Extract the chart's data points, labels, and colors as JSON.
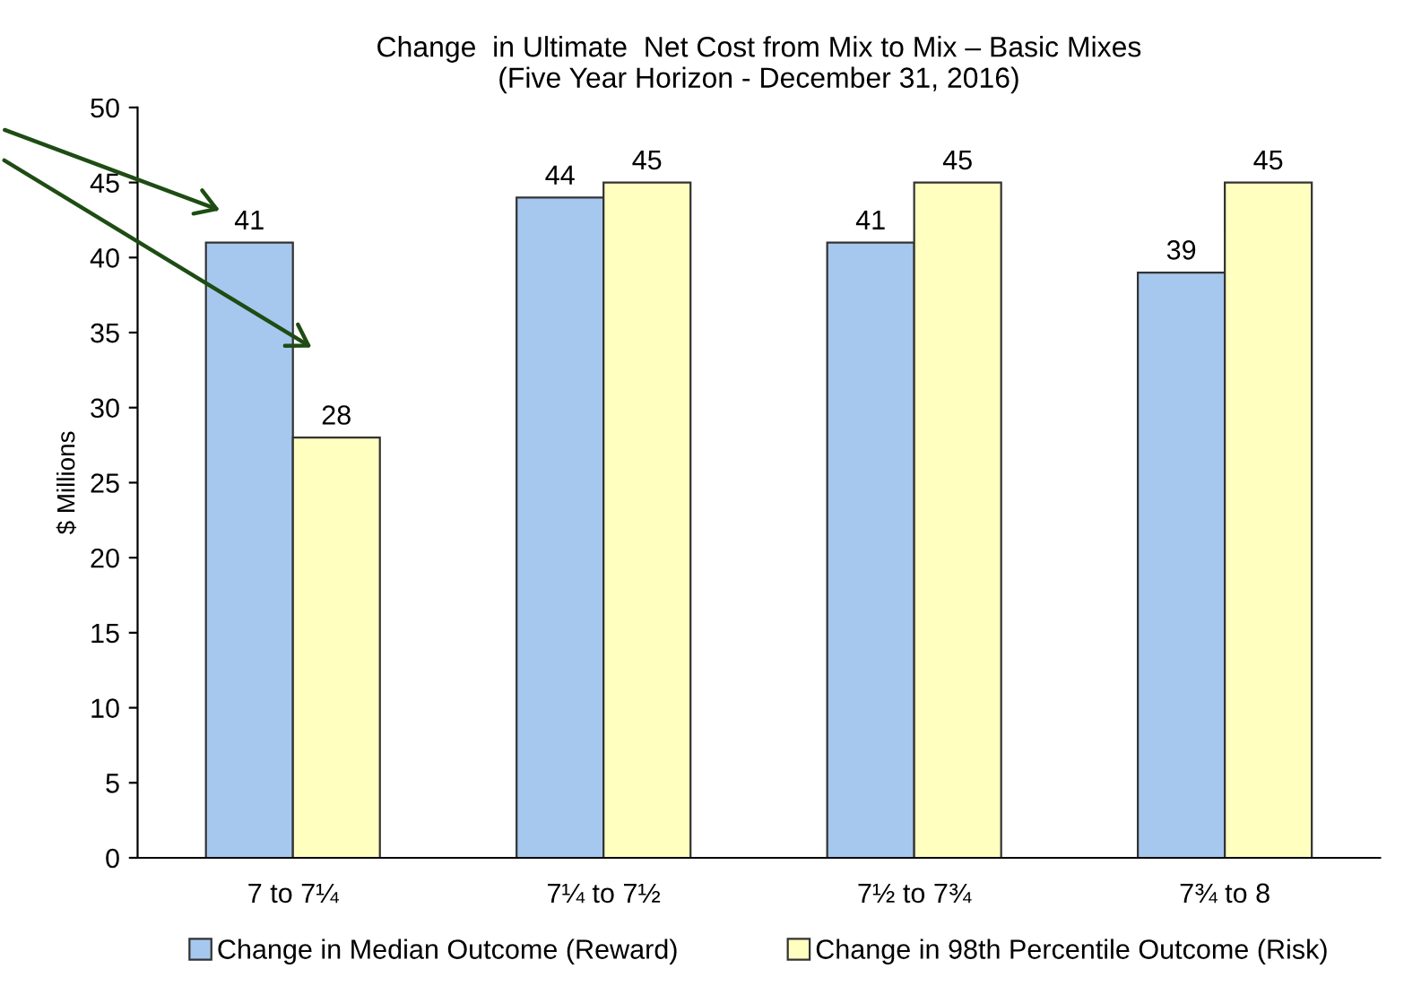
{
  "chart_data": {
    "type": "bar",
    "title": "Change  in Ultimate  Net Cost from Mix to Mix – Basic Mixes\n(Five Year Horizon - December 31, 2016)",
    "ylabel": "$ Millions",
    "categories": [
      "7 to 7¼",
      "7¼ to 7½",
      "7½ to 7¾",
      "7¾ to 8"
    ],
    "series": [
      {
        "name": "Change in Median Outcome (Reward)",
        "color": "#a6c8ee",
        "values": [
          41,
          44,
          41,
          39
        ]
      },
      {
        "name": "Change in 98th Percentile Outcome (Risk)",
        "color": "#ffffc0",
        "values": [
          28,
          45,
          45,
          45
        ]
      }
    ],
    "ylim": [
      0,
      50
    ],
    "yticks": [
      0,
      5,
      10,
      15,
      20,
      25,
      30,
      35,
      40,
      45,
      50
    ],
    "grid": false,
    "legend": "bottom",
    "data_labels": true
  }
}
